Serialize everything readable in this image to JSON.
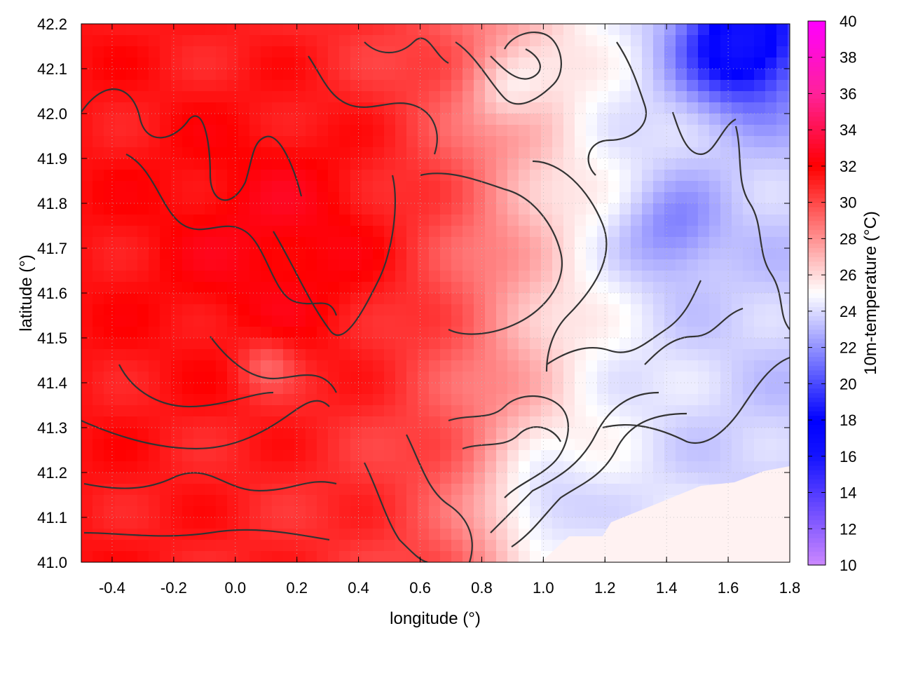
{
  "chart_data": {
    "type": "heatmap",
    "title": "",
    "xlabel": "longitude (°)",
    "ylabel": "latitude (°)",
    "colorbar_label": "10m-temperature (°C)",
    "xlim": [
      -0.5,
      1.8
    ],
    "ylim": [
      41.0,
      42.2
    ],
    "x_ticks": [
      "-0.4",
      "-0.2",
      "0.0",
      "0.2",
      "0.4",
      "0.6",
      "0.8",
      "1.0",
      "1.2",
      "1.4",
      "1.6",
      "1.8"
    ],
    "y_ticks": [
      "41.0",
      "41.1",
      "41.2",
      "41.3",
      "41.4",
      "41.5",
      "41.6",
      "41.7",
      "41.8",
      "41.9",
      "42.0",
      "42.1",
      "42.2"
    ],
    "colorbar_range": [
      10,
      40
    ],
    "colorbar_ticks": [
      "10",
      "12",
      "14",
      "16",
      "18",
      "20",
      "22",
      "24",
      "26",
      "28",
      "30",
      "32",
      "34",
      "36",
      "38",
      "40"
    ],
    "colormap": [
      {
        "value": 10,
        "color": "#cc88ff"
      },
      {
        "value": 16,
        "color": "#1414ff"
      },
      {
        "value": 18,
        "color": "#0000ff"
      },
      {
        "value": 25,
        "color": "#ffffff"
      },
      {
        "value": 32,
        "color": "#ff0000"
      },
      {
        "value": 36,
        "color": "#ff2299"
      },
      {
        "value": 40,
        "color": "#ff00ff"
      }
    ],
    "grid": true,
    "contours": true
  }
}
